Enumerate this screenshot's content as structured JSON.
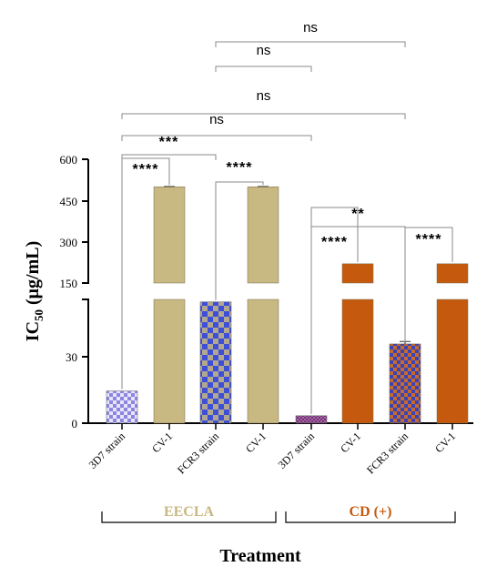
{
  "chart_data": {
    "type": "bar",
    "ylabel": "IC50 (μg/mL)",
    "ylabel_main": "IC",
    "ylabel_sub": "50",
    "ylabel_unit": " (μg/mL)",
    "xlabel": "Treatment",
    "y_axis": {
      "broken": true,
      "lower_segment": {
        "range": [
          0,
          50
        ],
        "ticks": [
          "0",
          "30"
        ]
      },
      "upper_segment": {
        "range": [
          150,
          600
        ],
        "ticks": [
          "150",
          "300",
          "450",
          "600"
        ]
      }
    },
    "categories": [
      "3D7 strain",
      "CV-1",
      "FCR3 strain",
      "CV-1",
      "3D7 strain",
      "CV-1",
      "FCR3 strain",
      "CV-1"
    ],
    "values": [
      13,
      500,
      49,
      500,
      3,
      220,
      32,
      220
    ],
    "error": [
      0,
      1,
      0,
      1,
      0,
      0,
      1,
      0
    ],
    "groups": [
      {
        "name": "EECLA",
        "color": "#c8b882",
        "bar_indices": [
          0,
          1,
          2,
          3
        ]
      },
      {
        "name": "CD (+)",
        "color": "#c55a0e",
        "bar_indices": [
          4,
          5,
          6,
          7
        ]
      }
    ],
    "significance": [
      {
        "label": "****",
        "from": 0,
        "to": 1
      },
      {
        "label": "****",
        "from": 2,
        "to": 3
      },
      {
        "label": "****",
        "from": 4,
        "to": 5
      },
      {
        "label": "****",
        "from": 6,
        "to": 7
      },
      {
        "label": "***",
        "from": 0,
        "to": 2
      },
      {
        "label": "**",
        "from": 4,
        "to": 6
      },
      {
        "label": "ns",
        "from": 0,
        "to": 4
      },
      {
        "label": "ns",
        "from": 0,
        "to": 6
      },
      {
        "label": "ns",
        "from": 2,
        "to": 4
      },
      {
        "label": "ns",
        "from": 2,
        "to": 6
      }
    ]
  },
  "colors": {
    "eecla": "#c8b882",
    "cdplus": "#c55a0e",
    "checker_eecla_3d7": "#9a94e0",
    "checker_eecla_fcr3": "#3a4fd8",
    "checker_cd_3d7": "#8a3a9a",
    "checker_cd_fcr3": "#3a44b8"
  }
}
